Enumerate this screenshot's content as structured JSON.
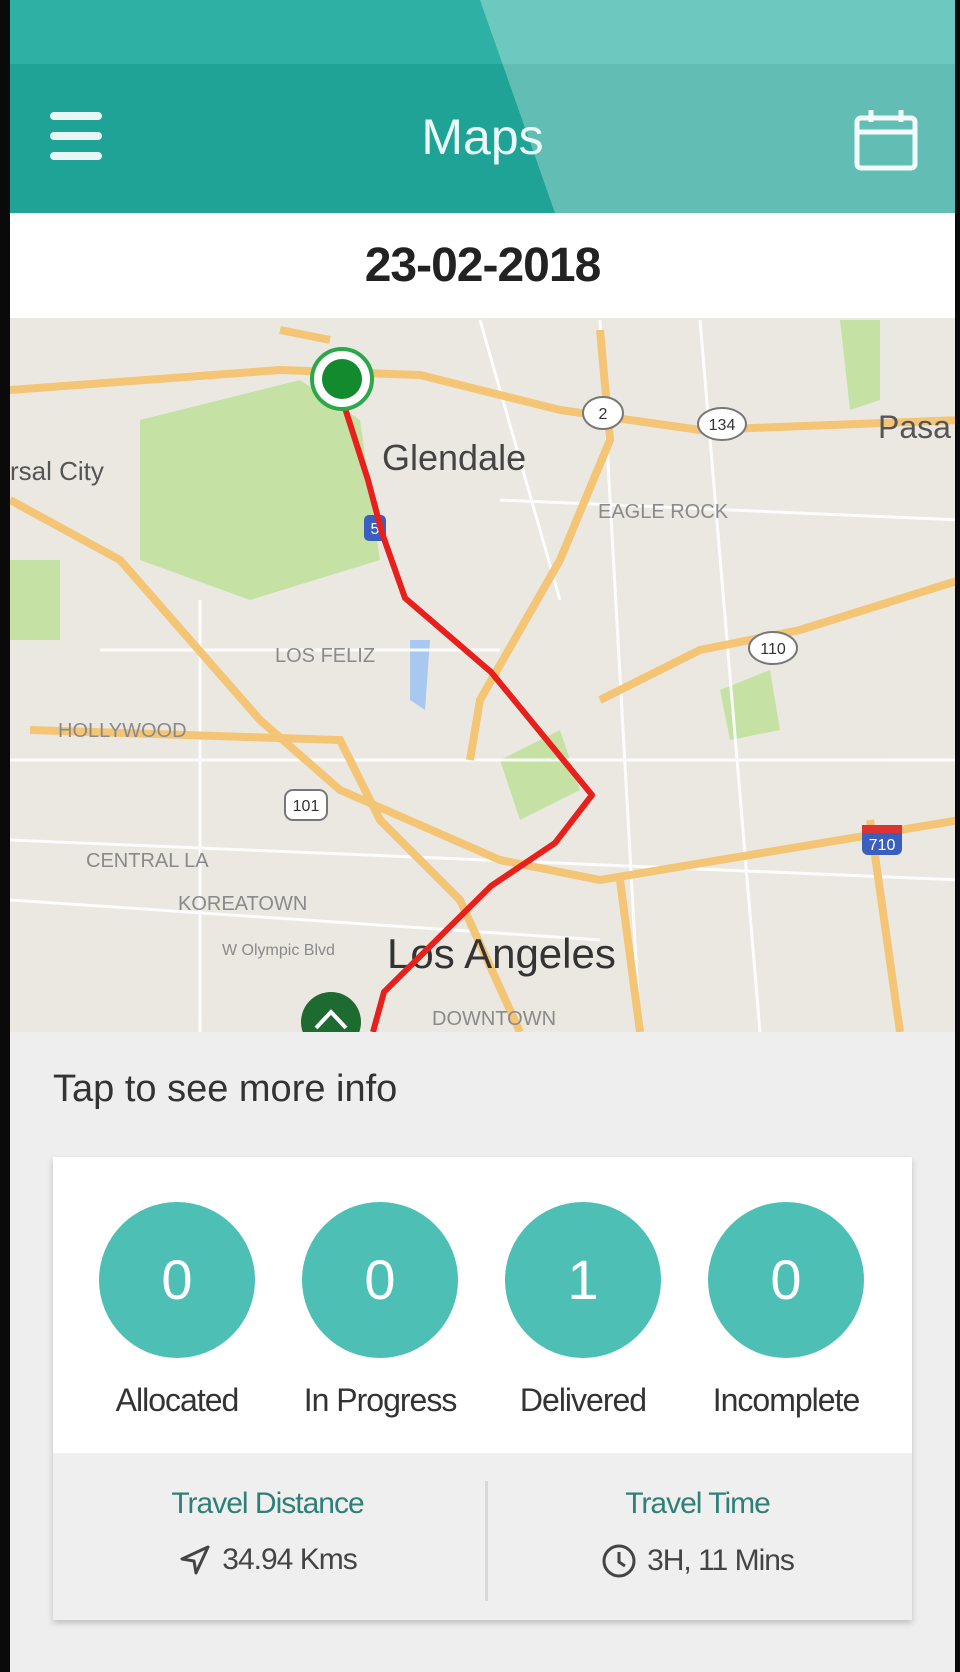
{
  "header": {
    "title": "Maps",
    "menu_icon": "hamburger-menu-icon",
    "calendar_icon": "calendar-icon",
    "color": "#1fa396"
  },
  "date": "23-02-2018",
  "map": {
    "labels": {
      "glendale": "Glendale",
      "los_angeles": "Los Angeles",
      "universal_city": "rsal City",
      "pasadena": "Pasa",
      "eagle_rock": "EAGLE ROCK",
      "los_feliz": "LOS FELIZ",
      "hollywood": "HOLLYWOOD",
      "central_la": "CENTRAL LA",
      "koreatown": "KOREATOWN",
      "olympic": "W Olympic Blvd",
      "downtown": "DOWNTOWN"
    },
    "shields": {
      "s2": "2",
      "s134": "134",
      "s5": "5",
      "s110": "110",
      "s101": "101",
      "s710": "710"
    },
    "route_color": "#e8201c"
  },
  "info": {
    "prompt": "Tap to see more info"
  },
  "stats": [
    {
      "value": "0",
      "label": "Allocated"
    },
    {
      "value": "0",
      "label": "In Progress"
    },
    {
      "value": "1",
      "label": "Delivered"
    },
    {
      "value": "0",
      "label": "Incomplete"
    }
  ],
  "travel": {
    "distance_label": "Travel Distance",
    "distance_value": "34.94 Kms",
    "distance_icon": "navigation-arrow-icon",
    "time_label": "Travel Time",
    "time_value": "3H, 11 Mins",
    "time_icon": "clock-icon"
  }
}
